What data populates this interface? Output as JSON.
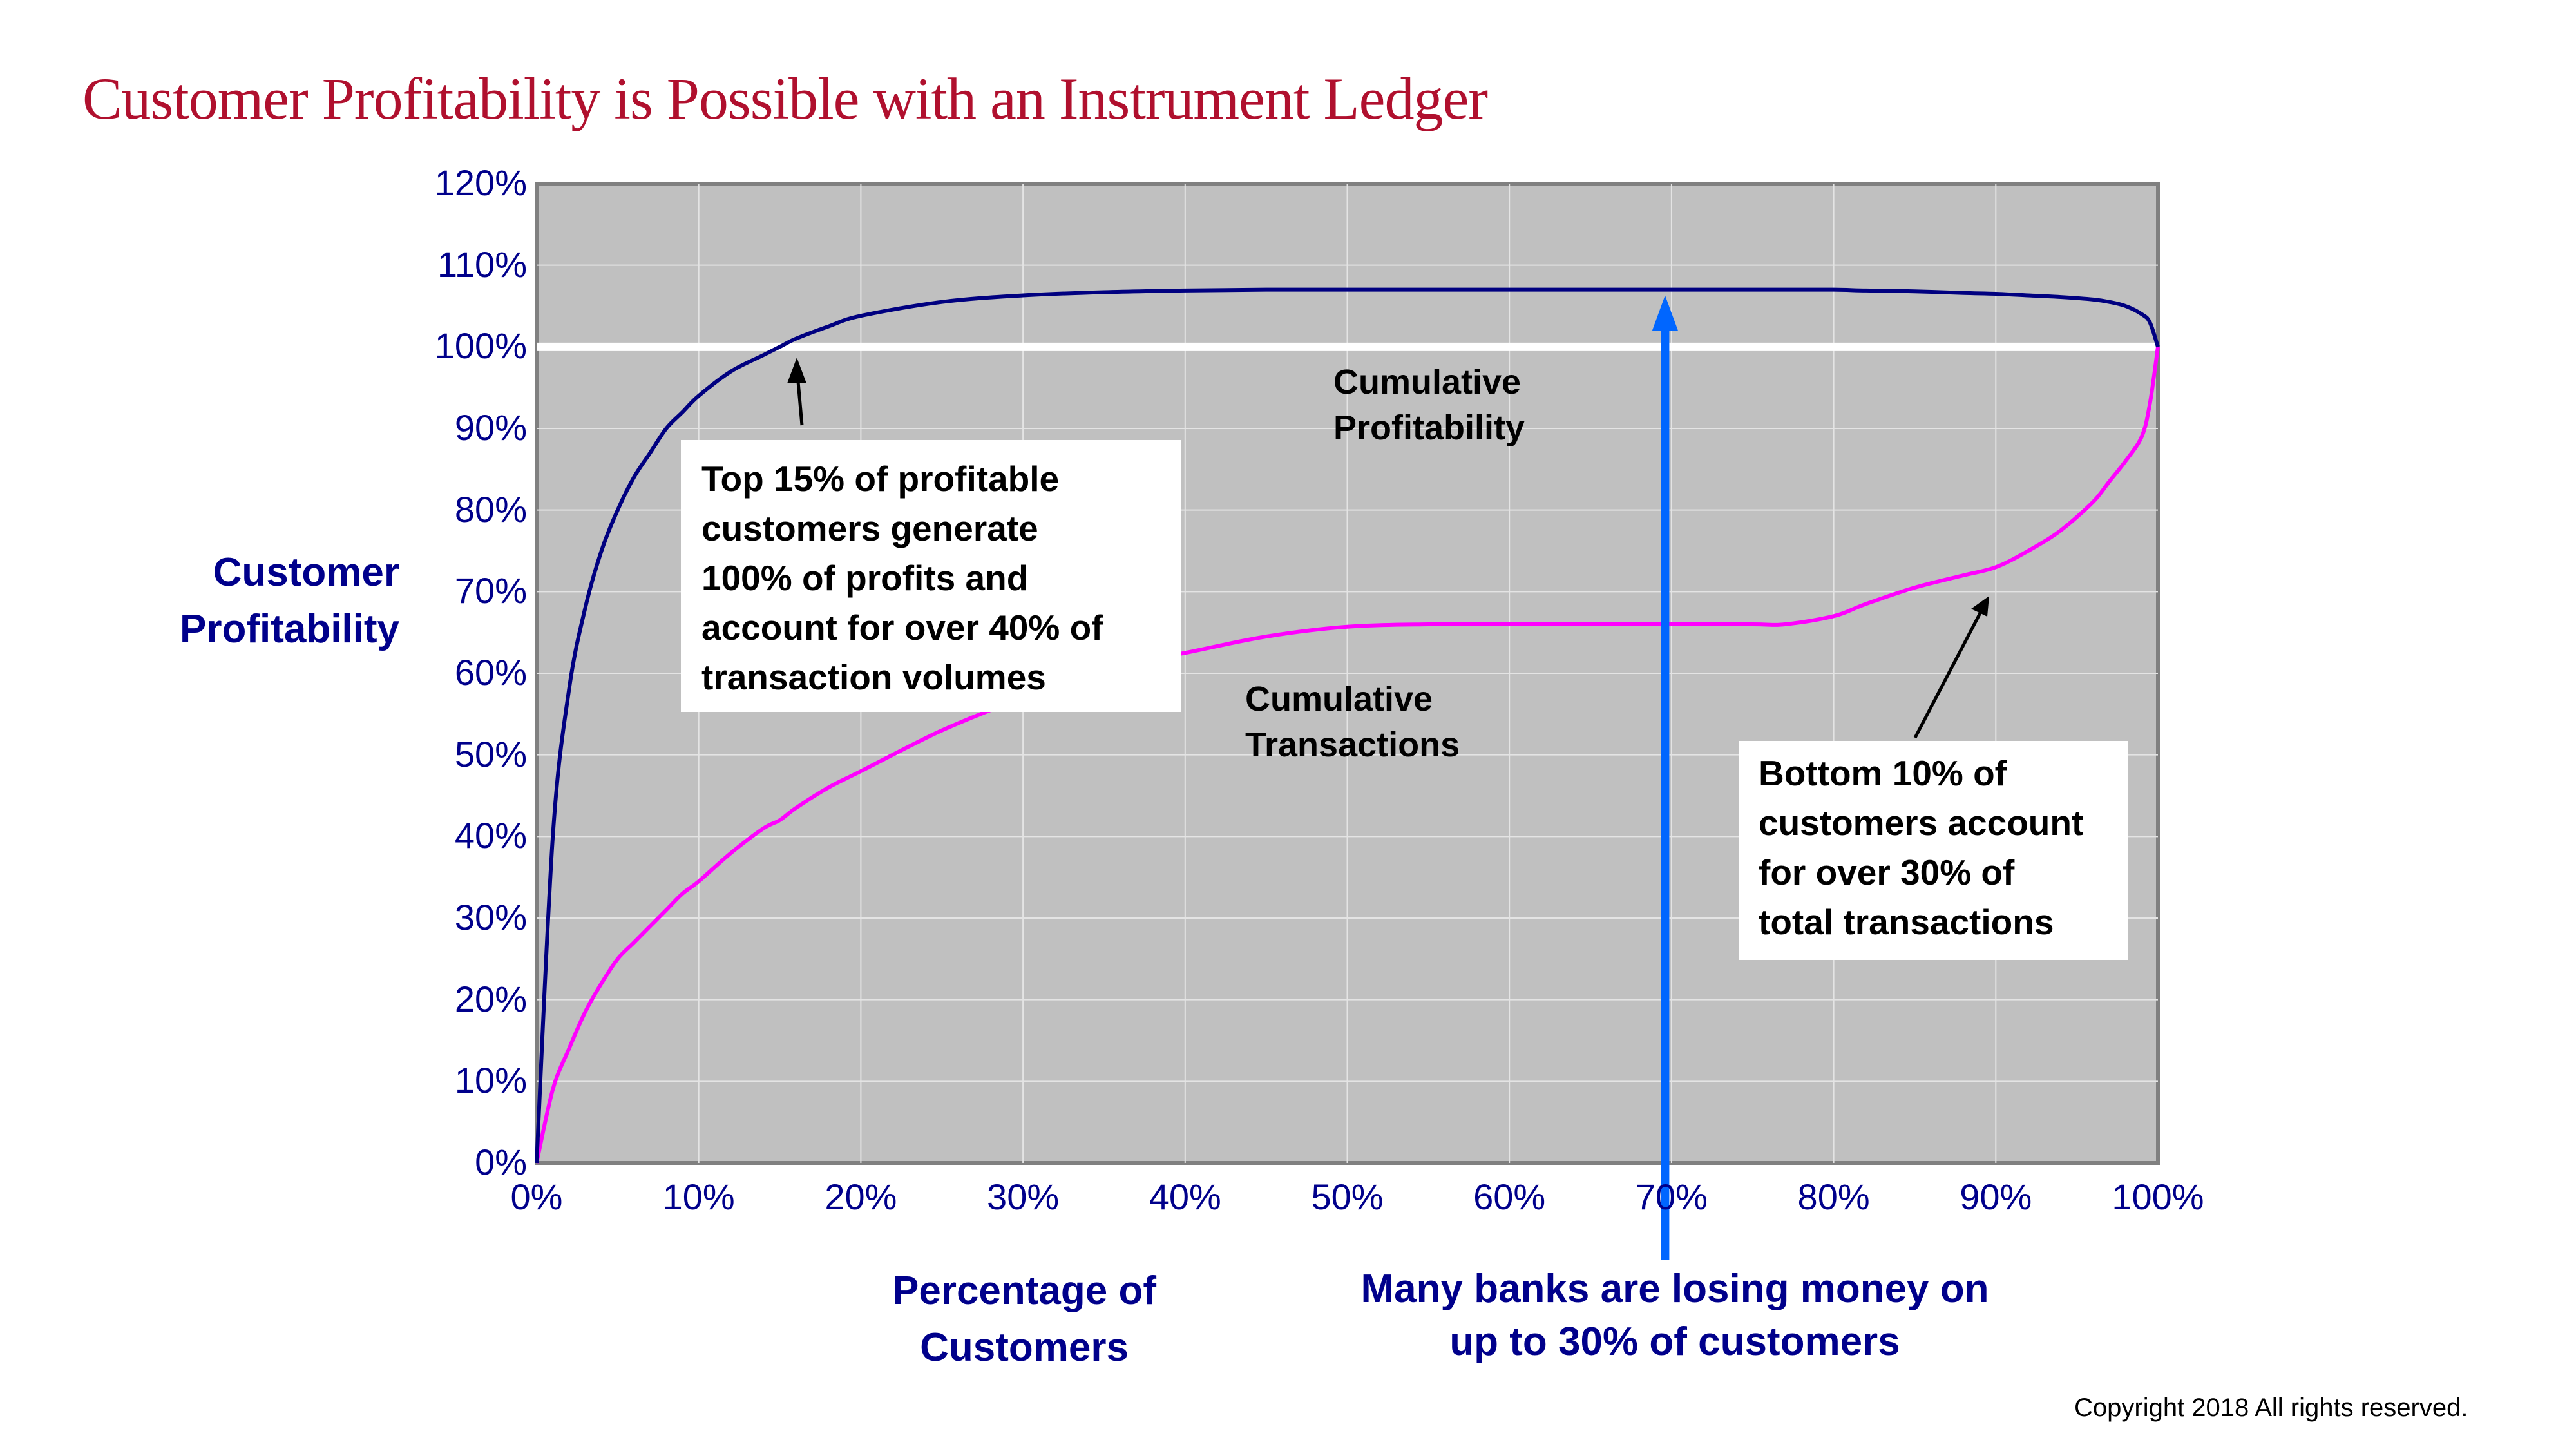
{
  "title": "Customer Profitability is Possible with an Instrument Ledger",
  "y_axis": {
    "label_line1": "Customer",
    "label_line2": "Profitability",
    "ticks": [
      "0%",
      "10%",
      "20%",
      "30%",
      "40%",
      "50%",
      "60%",
      "70%",
      "80%",
      "90%",
      "100%",
      "110%",
      "120%"
    ]
  },
  "x_axis": {
    "label_line1": "Percentage of",
    "label_line2": "Customers",
    "ticks": [
      "0%",
      "10%",
      "20%",
      "30%",
      "40%",
      "50%",
      "60%",
      "70%",
      "80%",
      "90%",
      "100%"
    ]
  },
  "series_labels": {
    "profit_line1": "Cumulative",
    "profit_line2": "Profitability",
    "trans_line1": "Cumulative",
    "trans_line2": "Transactions"
  },
  "callouts": {
    "top": [
      "Top 15% of profitable",
      "customers generate",
      "100% of profits and",
      "account for over 40% of",
      "transaction volumes"
    ],
    "bottom": [
      "Bottom 10% of",
      "customers account",
      "for over 30% of",
      "total transactions"
    ]
  },
  "note": {
    "line1": "Many banks are losing money on",
    "line2": "up to 30% of customers"
  },
  "copyright": "Copyright 2018  All rights reserved.",
  "colors": {
    "title": "#b0102e",
    "axis_text": "#00008b",
    "plot_bg": "#c0c0c0",
    "profit_line": "#000080",
    "transactions_line": "#ff00ff",
    "reference_line": "#ffffff",
    "arrow": "#0066ff"
  },
  "chart_data": {
    "type": "line",
    "title": "Customer Profitability is Possible with an Instrument Ledger",
    "xlabel": "Percentage of Customers",
    "ylabel": "Customer Profitability",
    "xlim": [
      0,
      100
    ],
    "ylim": [
      0,
      120
    ],
    "x_ticks": [
      0,
      10,
      20,
      30,
      40,
      50,
      60,
      70,
      80,
      90,
      100
    ],
    "y_ticks": [
      0,
      10,
      20,
      30,
      40,
      50,
      60,
      70,
      80,
      90,
      100,
      110,
      120
    ],
    "grid": true,
    "reference_lines": [
      {
        "axis": "y",
        "value": 100,
        "color": "#ffffff"
      }
    ],
    "x": [
      0,
      1,
      2,
      3,
      4,
      5,
      6,
      7,
      8,
      9,
      10,
      12,
      14,
      15,
      16,
      18,
      20,
      25,
      30,
      35,
      40,
      45,
      50,
      55,
      60,
      65,
      70,
      75,
      77,
      80,
      82,
      85,
      88,
      90,
      92,
      94,
      96,
      97,
      98,
      99,
      99.5,
      100
    ],
    "series": [
      {
        "name": "Cumulative Profitability",
        "values": [
          0,
          40,
          58,
          68,
          75,
          80,
          84,
          87,
          90,
          92,
          94,
          97,
          99,
          100,
          101,
          102.5,
          103.8,
          105.5,
          106.3,
          106.7,
          106.9,
          107,
          107,
          107,
          107,
          107,
          107,
          107,
          107,
          107,
          106.9,
          106.8,
          106.6,
          106.5,
          106.3,
          106.1,
          105.8,
          105.5,
          105,
          104,
          103,
          100
        ]
      },
      {
        "name": "Cumulative Transactions",
        "values": [
          0,
          9,
          14,
          18.5,
          22,
          25,
          27,
          29,
          31,
          33,
          34.5,
          38,
          41,
          42,
          43.5,
          46,
          48,
          53,
          57,
          60.5,
          62.5,
          64.5,
          65.7,
          66,
          66,
          66,
          66,
          66,
          66,
          67,
          68.5,
          70.5,
          72,
          73,
          75,
          77.5,
          81,
          83.5,
          86,
          89,
          93,
          100
        ]
      }
    ],
    "annotations": [
      {
        "text": "Top 15% of profitable customers generate 100% of profits and account for over 40% of transaction volumes",
        "points_to": [
          15.5,
          100
        ]
      },
      {
        "text": "Bottom 10% of customers account for over 30% of total transactions",
        "points_to": [
          89,
          70.5
        ]
      },
      {
        "text": "Cumulative Profitability",
        "at": [
          55,
          93
        ]
      },
      {
        "text": "Cumulative Transactions",
        "at": [
          44,
          54
        ]
      },
      {
        "text": "Many banks are losing money on up to 30% of customers",
        "arrow_x": 70,
        "arrow_to_y": 107
      }
    ]
  }
}
